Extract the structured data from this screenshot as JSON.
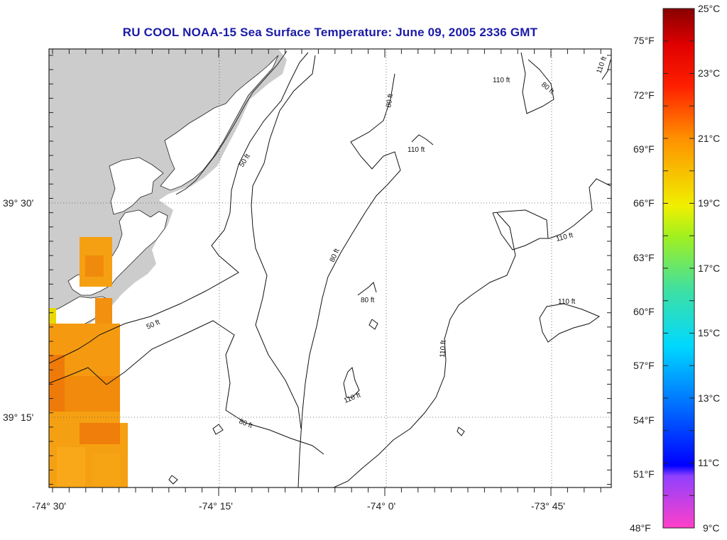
{
  "title": "RU COOL  NOAA-15  Sea Surface Temperature:  June 09, 2005 2336 GMT",
  "lat_labels": [
    {
      "label": "39° 30'"
    },
    {
      "label": "39° 15'"
    }
  ],
  "lon_labels": [
    {
      "label": "-74° 30'"
    },
    {
      "label": "-74° 15'"
    },
    {
      "label": "-74° 0'"
    },
    {
      "label": "-73° 45'"
    }
  ],
  "contour_labels": [
    "110 ft",
    "80 ft",
    "110 ft",
    "80 ft",
    "110 ft",
    "50 ft",
    "110 ft",
    "80 ft",
    "110 ft",
    "80 ft",
    "110 ft",
    "50 ft",
    "110 ft",
    "80 ft"
  ],
  "colorbar": {
    "celsius": [
      "25°C",
      "23°C",
      "21°C",
      "19°C",
      "17°C",
      "15°C",
      "13°C",
      "11°C",
      "9°C"
    ],
    "fahrenheit": [
      "75°F",
      "72°F",
      "69°F",
      "66°F",
      "63°F",
      "60°F",
      "57°F",
      "54°F",
      "51°F",
      "48°F"
    ]
  },
  "colors": {
    "title": "#1a1aa6",
    "land": "#cccccc",
    "sst_warm": "#f59a10",
    "sst_mid": "#f8a818",
    "sst_hot": "#ee7a0a"
  }
}
